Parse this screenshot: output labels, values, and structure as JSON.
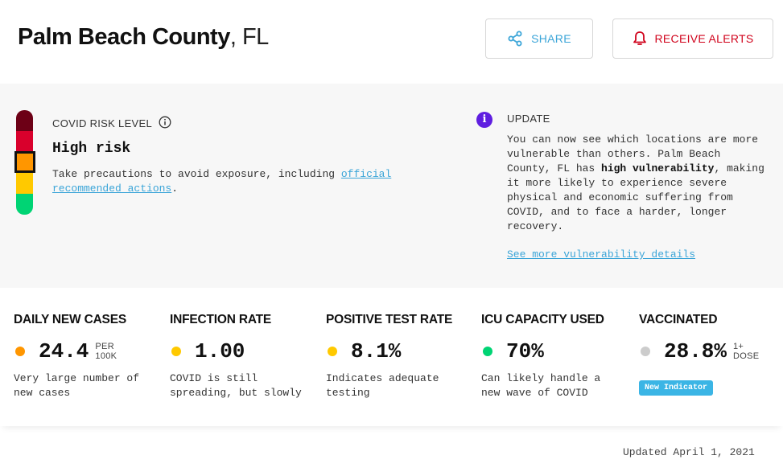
{
  "header": {
    "county": "Palm Beach County",
    "state": ", FL",
    "share_label": "SHARE",
    "alerts_label": "RECEIVE ALERTS",
    "share_icon": "share-icon",
    "alerts_icon": "bell-icon"
  },
  "risk": {
    "label": "COVID RISK LEVEL",
    "level": "High risk",
    "desc_prefix": "Take precautions to avoid exposure, including ",
    "desc_link": "official recommended actions",
    "desc_suffix": ".",
    "meter_colors": [
      "#6d0016",
      "#d9002c",
      "#ff9600",
      "#ffc900",
      "#00d474"
    ],
    "active_level_index": 2
  },
  "update": {
    "icon": "i",
    "label": "UPDATE",
    "text_1": "You can now see which locations are more vulnerable than others. Palm Beach County, FL has ",
    "text_bold": "high vulnerability",
    "text_2": ", making it more likely to experience severe physical and economic suffering from COVID, and to face a harder, longer recovery.",
    "link": "See more vulnerability details"
  },
  "metrics": [
    {
      "title": "DAILY NEW CASES",
      "value": "24.4",
      "unit_line1": "PER",
      "unit_line2": "100K",
      "dot_color": "#ff9600",
      "desc": "Very large number of new cases"
    },
    {
      "title": "INFECTION RATE",
      "value": "1.00",
      "unit_line1": "",
      "unit_line2": "",
      "dot_color": "#ffc900",
      "desc": "COVID is still spreading, but slowly"
    },
    {
      "title": "POSITIVE TEST RATE",
      "value": "8.1%",
      "unit_line1": "",
      "unit_line2": "",
      "dot_color": "#ffc900",
      "desc": "Indicates adequate testing"
    },
    {
      "title": "ICU CAPACITY USED",
      "value": "70%",
      "unit_line1": "",
      "unit_line2": "",
      "dot_color": "#00d474",
      "desc": "Can likely handle a new wave of COVID"
    },
    {
      "title": "VACCINATED",
      "value": "28.8%",
      "unit_line1": "1+",
      "unit_line2": "DOSE",
      "dot_color": "#cccccc",
      "desc": "",
      "badge": "New Indicator"
    }
  ],
  "footer": {
    "updated": "Updated April 1, 2021"
  }
}
